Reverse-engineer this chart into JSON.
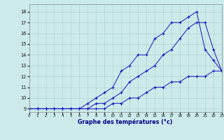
{
  "xlabel": "Graphe des températures (°c)",
  "background_color": "#cceaea",
  "line_color": "#1515bb",
  "grid_color": "#aacccc",
  "xlim": [
    0,
    23
  ],
  "ylim": [
    8.7,
    18.7
  ],
  "xticks": [
    0,
    1,
    2,
    3,
    4,
    5,
    6,
    7,
    8,
    9,
    10,
    11,
    12,
    13,
    14,
    15,
    16,
    17,
    18,
    19,
    20,
    21,
    22,
    23
  ],
  "yticks": [
    9,
    10,
    11,
    12,
    13,
    14,
    15,
    16,
    17,
    18
  ],
  "x": [
    0,
    1,
    2,
    3,
    4,
    5,
    6,
    7,
    8,
    9,
    10,
    11,
    12,
    13,
    14,
    15,
    16,
    17,
    18,
    19,
    20,
    21,
    22,
    23
  ],
  "line_low": [
    9.0,
    9.0,
    9.0,
    9.0,
    9.0,
    9.0,
    9.0,
    9.0,
    9.0,
    9.0,
    9.5,
    9.5,
    10.0,
    10.0,
    10.5,
    11.0,
    11.0,
    11.5,
    11.5,
    12.0,
    12.0,
    12.0,
    12.5,
    12.5
  ],
  "line_mid": [
    9.0,
    9.0,
    9.0,
    9.0,
    9.0,
    9.0,
    9.0,
    9.0,
    9.5,
    9.5,
    10.0,
    10.5,
    11.5,
    12.0,
    12.5,
    13.0,
    14.0,
    14.5,
    15.5,
    16.5,
    17.0,
    17.0,
    14.5,
    12.5
  ],
  "line_high": [
    9.0,
    9.0,
    9.0,
    9.0,
    9.0,
    9.0,
    9.0,
    9.5,
    10.0,
    10.5,
    11.0,
    12.5,
    13.0,
    14.0,
    14.0,
    15.5,
    16.0,
    17.0,
    17.0,
    17.5,
    18.0,
    14.5,
    13.5,
    12.5
  ]
}
